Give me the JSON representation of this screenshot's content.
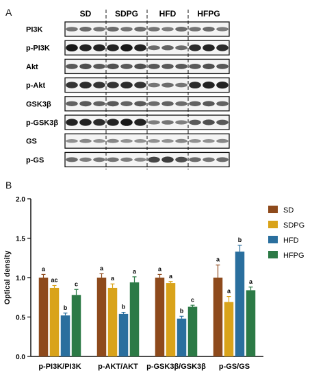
{
  "panel_a": {
    "letter": "A",
    "groups": [
      "SD",
      "SDPG",
      "HFD",
      "HFPG"
    ],
    "rows": [
      {
        "label": "PI3K",
        "intensities": [
          0.45,
          0.5,
          0.45,
          0.5,
          0.45,
          0.5,
          0.45,
          0.4,
          0.5,
          0.45,
          0.5,
          0.4
        ]
      },
      {
        "label": "p-PI3K",
        "intensities": [
          0.95,
          0.9,
          0.9,
          0.9,
          0.95,
          0.9,
          0.5,
          0.55,
          0.5,
          0.85,
          0.9,
          0.85
        ]
      },
      {
        "label": "Akt",
        "intensities": [
          0.6,
          0.65,
          0.6,
          0.65,
          0.6,
          0.65,
          0.6,
          0.6,
          0.6,
          0.6,
          0.65,
          0.6
        ]
      },
      {
        "label": "p-Akt",
        "intensities": [
          0.8,
          0.85,
          0.8,
          0.8,
          0.85,
          0.8,
          0.45,
          0.5,
          0.45,
          0.85,
          0.9,
          0.9
        ]
      },
      {
        "label": "GSK3β",
        "intensities": [
          0.55,
          0.6,
          0.55,
          0.6,
          0.55,
          0.6,
          0.5,
          0.55,
          0.5,
          0.55,
          0.6,
          0.55
        ]
      },
      {
        "label": "p-GSK3β",
        "intensities": [
          0.9,
          0.9,
          0.85,
          0.9,
          0.95,
          0.9,
          0.4,
          0.45,
          0.4,
          0.6,
          0.65,
          0.6
        ]
      },
      {
        "label": "GS",
        "intensities": [
          0.3,
          0.35,
          0.3,
          0.35,
          0.3,
          0.3,
          0.3,
          0.3,
          0.35,
          0.3,
          0.3,
          0.35
        ]
      },
      {
        "label": "p-GS",
        "intensities": [
          0.5,
          0.4,
          0.45,
          0.45,
          0.4,
          0.35,
          0.7,
          0.75,
          0.65,
          0.5,
          0.45,
          0.5
        ]
      }
    ]
  },
  "panel_b": {
    "letter": "B"
  },
  "chart_data": {
    "type": "bar",
    "categories": [
      "p-PI3K/PI3K",
      "p-AKT/AKT",
      "p-GSK3β/GSK3β",
      "p-GS/GS"
    ],
    "series": [
      {
        "name": "SD",
        "color": "#8e4a1c",
        "values": [
          1.0,
          1.0,
          1.0,
          1.0
        ],
        "errors": [
          0.04,
          0.05,
          0.04,
          0.16
        ],
        "letters": [
          "a",
          "a",
          "a",
          "a"
        ]
      },
      {
        "name": "SDPG",
        "color": "#d9a31a",
        "values": [
          0.87,
          0.87,
          0.93,
          0.69
        ],
        "errors": [
          0.03,
          0.05,
          0.02,
          0.07
        ],
        "letters": [
          "ac",
          "a",
          "a",
          "a"
        ]
      },
      {
        "name": "HFD",
        "color": "#2a6f9e",
        "values": [
          0.52,
          0.54,
          0.48,
          1.33
        ],
        "errors": [
          0.03,
          0.02,
          0.03,
          0.08
        ],
        "letters": [
          "b",
          "b",
          "b",
          "b"
        ]
      },
      {
        "name": "HFPG",
        "color": "#2c7a46",
        "values": [
          0.78,
          0.94,
          0.63,
          0.84
        ],
        "errors": [
          0.07,
          0.07,
          0.02,
          0.04
        ],
        "letters": [
          "c",
          "a",
          "c",
          "a"
        ]
      }
    ],
    "ylabel": "Optical density",
    "ylim": [
      0,
      2.0
    ],
    "yticks": [
      "0.0",
      "0.5",
      "1.0",
      "1.5",
      "2.0"
    ],
    "legend_position": "right",
    "grid": false
  }
}
